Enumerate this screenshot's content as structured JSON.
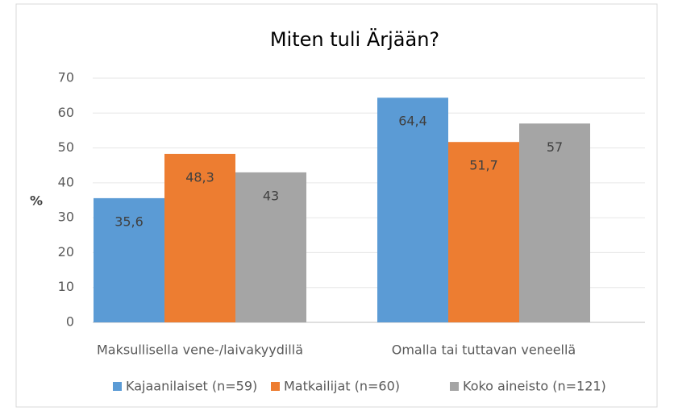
{
  "chart_data": {
    "type": "bar",
    "title": "Miten tuli Ärjään?",
    "y_label": "%",
    "categories": [
      "Maksullisella vene-/laivakyydillä",
      "Omalla tai tuttavan veneellä"
    ],
    "series": [
      {
        "name": "Kajaanilaiset (n=59)",
        "color": "#5b9bd5",
        "values": [
          35.6,
          64.4
        ],
        "value_labels": [
          "35,6",
          "64,4"
        ]
      },
      {
        "name": "Matkailijat (n=60)",
        "color": "#ed7d31",
        "values": [
          48.3,
          51.7
        ],
        "value_labels": [
          "48,3",
          "51,7"
        ]
      },
      {
        "name": "Koko aineisto (n=121)",
        "color": "#a5a5a5",
        "values": [
          43,
          57
        ],
        "value_labels": [
          "43",
          "57"
        ]
      }
    ],
    "ylim": [
      0,
      70
    ],
    "yticks": [
      0,
      10,
      20,
      30,
      40,
      50,
      60,
      70
    ],
    "grid": true,
    "legend": "bottom"
  }
}
